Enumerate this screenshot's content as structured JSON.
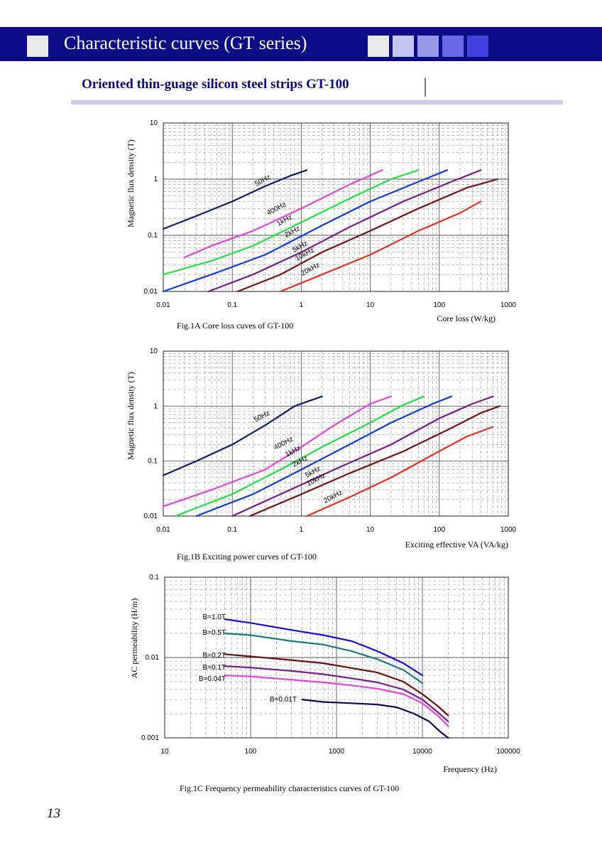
{
  "header": {
    "title": "Characteristic curves (GT series)",
    "squares": [
      "#e8e8e8",
      "#e8e8e8",
      "#c6c6f2",
      "#9898e8",
      "#6a6ae4",
      "#4040e0"
    ]
  },
  "subtitle": "Oriented thin-guage silicon steel strips GT-100",
  "page_number": "13",
  "chart_data": [
    {
      "type": "line",
      "caption": "Fig.1A Core loss cuves of GT-100",
      "xlabel": "Core loss (W/kg)",
      "ylabel": "Magnetic flux density (T)",
      "x_scale": "log",
      "y_scale": "log",
      "xlim": [
        0.01,
        1000
      ],
      "ylim": [
        0.01,
        10
      ],
      "x_ticks": [
        "0.01",
        "0.1",
        "1",
        "10",
        "100",
        "1000"
      ],
      "y_ticks": [
        "0.01",
        "0.1",
        "1",
        "10"
      ],
      "grid": true,
      "series": [
        {
          "name": "50Hz",
          "color": "#0a1f6e",
          "points": [
            [
              0.01,
              0.13
            ],
            [
              0.03,
              0.22
            ],
            [
              0.1,
              0.4
            ],
            [
              0.3,
              0.75
            ],
            [
              0.7,
              1.15
            ],
            [
              1.2,
              1.45
            ]
          ]
        },
        {
          "name": "400Hz",
          "color": "#e640e0",
          "points": [
            [
              0.02,
              0.04
            ],
            [
              0.05,
              0.065
            ],
            [
              0.2,
              0.12
            ],
            [
              1,
              0.3
            ],
            [
              5,
              0.8
            ],
            [
              15,
              1.45
            ]
          ]
        },
        {
          "name": "1kHz",
          "color": "#22e040",
          "points": [
            [
              0.01,
              0.02
            ],
            [
              0.05,
              0.035
            ],
            [
              0.2,
              0.065
            ],
            [
              1,
              0.17
            ],
            [
              5,
              0.45
            ],
            [
              20,
              1.0
            ],
            [
              50,
              1.45
            ]
          ]
        },
        {
          "name": "2kHz",
          "color": "#0f3fd2",
          "points": [
            [
              0.01,
              0.01
            ],
            [
              0.05,
              0.02
            ],
            [
              0.3,
              0.045
            ],
            [
              2,
              0.15
            ],
            [
              10,
              0.4
            ],
            [
              50,
              0.9
            ],
            [
              130,
              1.45
            ]
          ]
        },
        {
          "name": "5kHz",
          "color": "#7a1a90",
          "points": [
            [
              0.045,
              0.01
            ],
            [
              0.2,
              0.02
            ],
            [
              1,
              0.05
            ],
            [
              5,
              0.14
            ],
            [
              30,
              0.4
            ],
            [
              150,
              0.9
            ],
            [
              400,
              1.45
            ]
          ]
        },
        {
          "name": "10kHz",
          "color": "#7a1010",
          "points": [
            [
              0.12,
              0.01
            ],
            [
              0.5,
              0.02
            ],
            [
              2,
              0.05
            ],
            [
              10,
              0.12
            ],
            [
              50,
              0.3
            ],
            [
              250,
              0.7
            ],
            [
              700,
              1.0
            ]
          ]
        },
        {
          "name": "20kHz",
          "color": "#e53020",
          "points": [
            [
              0.5,
              0.01
            ],
            [
              2,
              0.02
            ],
            [
              10,
              0.045
            ],
            [
              50,
              0.12
            ],
            [
              200,
              0.25
            ],
            [
              400,
              0.4
            ]
          ]
        }
      ]
    },
    {
      "type": "line",
      "caption": "Fig.1B Exciting power curves of GT-100",
      "xlabel": "Exciting effective VA (VA/kg)",
      "ylabel": "Magnetic flux density (T)",
      "x_scale": "log",
      "y_scale": "log",
      "xlim": [
        0.01,
        1000
      ],
      "ylim": [
        0.01,
        10
      ],
      "x_ticks": [
        "0.01",
        "0.1",
        "1",
        "10",
        "100",
        "1000"
      ],
      "y_ticks": [
        "0.01",
        "0.1",
        "1",
        "10"
      ],
      "grid": true,
      "series": [
        {
          "name": "50Hz",
          "color": "#0a1f6e",
          "points": [
            [
              0.01,
              0.055
            ],
            [
              0.03,
              0.1
            ],
            [
              0.1,
              0.2
            ],
            [
              0.3,
              0.45
            ],
            [
              0.8,
              1.0
            ],
            [
              1.2,
              1.2
            ],
            [
              2,
              1.5
            ]
          ]
        },
        {
          "name": "400Hz",
          "color": "#e640e0",
          "points": [
            [
              0.01,
              0.015
            ],
            [
              0.05,
              0.03
            ],
            [
              0.3,
              0.07
            ],
            [
              1,
              0.18
            ],
            [
              3,
              0.45
            ],
            [
              10,
              1.1
            ],
            [
              20,
              1.5
            ]
          ]
        },
        {
          "name": "1kHz",
          "color": "#22e040",
          "points": [
            [
              0.015,
              0.01
            ],
            [
              0.1,
              0.025
            ],
            [
              0.5,
              0.07
            ],
            [
              2,
              0.18
            ],
            [
              10,
              0.5
            ],
            [
              30,
              1.05
            ],
            [
              60,
              1.5
            ]
          ]
        },
        {
          "name": "2kHz",
          "color": "#0f3fd2",
          "points": [
            [
              0.03,
              0.01
            ],
            [
              0.2,
              0.025
            ],
            [
              1,
              0.07
            ],
            [
              5,
              0.2
            ],
            [
              20,
              0.5
            ],
            [
              80,
              1.1
            ],
            [
              150,
              1.5
            ]
          ]
        },
        {
          "name": "5kHz",
          "color": "#7a1a90",
          "points": [
            [
              0.1,
              0.01
            ],
            [
              0.5,
              0.025
            ],
            [
              3,
              0.07
            ],
            [
              20,
              0.2
            ],
            [
              100,
              0.6
            ],
            [
              300,
              1.1
            ],
            [
              600,
              1.5
            ]
          ]
        },
        {
          "name": "10kHz",
          "color": "#7a1010",
          "points": [
            [
              0.18,
              0.01
            ],
            [
              1,
              0.025
            ],
            [
              5,
              0.06
            ],
            [
              30,
              0.15
            ],
            [
              150,
              0.4
            ],
            [
              400,
              0.75
            ],
            [
              750,
              1.0
            ]
          ]
        },
        {
          "name": "20kHz",
          "color": "#e53020",
          "points": [
            [
              1.2,
              0.01
            ],
            [
              5,
              0.022
            ],
            [
              20,
              0.05
            ],
            [
              80,
              0.13
            ],
            [
              250,
              0.28
            ],
            [
              600,
              0.42
            ]
          ]
        }
      ]
    },
    {
      "type": "line",
      "caption": "Fig.1C Frequency permeability characteristics curves of GT-100",
      "xlabel": "Frequency (Hz)",
      "ylabel": "AC permeability (H/m)",
      "x_scale": "log",
      "y_scale": "log",
      "xlim": [
        10,
        100000
      ],
      "ylim": [
        0.001,
        0.1
      ],
      "x_ticks": [
        "10",
        "100",
        "1000",
        "10000",
        "100000"
      ],
      "y_ticks": [
        "0.001",
        "0.01",
        "0.1"
      ],
      "grid": true,
      "series": [
        {
          "name": "B=1.0T",
          "color": "#1010d8",
          "points": [
            [
              50,
              0.03
            ],
            [
              100,
              0.027
            ],
            [
              300,
              0.022
            ],
            [
              700,
              0.019
            ],
            [
              1500,
              0.016
            ],
            [
              3000,
              0.012
            ],
            [
              6000,
              0.0085
            ],
            [
              10000,
              0.006
            ]
          ]
        },
        {
          "name": "B=0.5T",
          "color": "#167a80",
          "points": [
            [
              50,
              0.02
            ],
            [
              100,
              0.019
            ],
            [
              300,
              0.016
            ],
            [
              700,
              0.0145
            ],
            [
              1500,
              0.012
            ],
            [
              3000,
              0.0095
            ],
            [
              6000,
              0.007
            ],
            [
              10000,
              0.0048
            ]
          ]
        },
        {
          "name": "B=0.2T",
          "color": "#6a0d0d",
          "points": [
            [
              50,
              0.011
            ],
            [
              100,
              0.0103
            ],
            [
              300,
              0.0093
            ],
            [
              700,
              0.0085
            ],
            [
              1500,
              0.0074
            ],
            [
              3000,
              0.0065
            ],
            [
              6000,
              0.005
            ],
            [
              10000,
              0.0035
            ],
            [
              15000,
              0.0025
            ],
            [
              20000,
              0.0019
            ]
          ]
        },
        {
          "name": "B=0.1T",
          "color": "#7a1a90",
          "points": [
            [
              50,
              0.0078
            ],
            [
              100,
              0.0075
            ],
            [
              300,
              0.0068
            ],
            [
              700,
              0.0062
            ],
            [
              1500,
              0.0055
            ],
            [
              3000,
              0.0049
            ],
            [
              6000,
              0.004
            ],
            [
              10000,
              0.003
            ],
            [
              15000,
              0.0021
            ],
            [
              20000,
              0.0016
            ]
          ]
        },
        {
          "name": "B=0.04T",
          "color": "#e640e0",
          "points": [
            [
              50,
              0.006
            ],
            [
              100,
              0.0058
            ],
            [
              300,
              0.0053
            ],
            [
              700,
              0.0049
            ],
            [
              1500,
              0.0045
            ],
            [
              3000,
              0.0041
            ],
            [
              6000,
              0.0035
            ],
            [
              10000,
              0.0027
            ],
            [
              15000,
              0.0019
            ],
            [
              20000,
              0.0014
            ]
          ]
        },
        {
          "name": "B=0.01T",
          "color": "#0a0a5e",
          "points": [
            [
              400,
              0.003
            ],
            [
              700,
              0.0028
            ],
            [
              1500,
              0.0027
            ],
            [
              3000,
              0.0026
            ],
            [
              5000,
              0.0024
            ],
            [
              8000,
              0.002
            ],
            [
              12000,
              0.0016
            ],
            [
              16000,
              0.0012
            ],
            [
              20000,
              0.001
            ]
          ]
        }
      ]
    }
  ]
}
